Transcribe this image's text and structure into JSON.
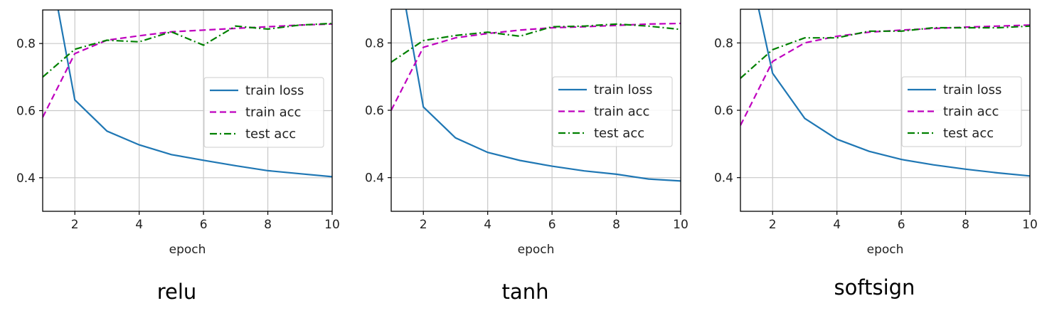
{
  "colors": {
    "train_loss": "#1f77b4",
    "train_acc": "#bf00bf",
    "test_acc": "#008000",
    "grid": "#c8c8c8",
    "axis": "#000000"
  },
  "chart_data": [
    {
      "type": "line",
      "caption": "relu",
      "xlabel": "epoch",
      "ylabel": "",
      "xlim": [
        1,
        10
      ],
      "ylim": [
        0.3,
        0.9
      ],
      "xticks": [
        2,
        4,
        6,
        8,
        10
      ],
      "yticks": [
        0.4,
        0.6,
        0.8
      ],
      "xtick_labels": [
        "2",
        "4",
        "6",
        "8",
        "10"
      ],
      "ytick_labels": [
        "0.4",
        "0.6",
        "0.8"
      ],
      "grid": true,
      "legend_position": "center-right",
      "x": [
        1,
        2,
        3,
        4,
        5,
        6,
        7,
        8,
        9,
        10
      ],
      "series": [
        {
          "name": "train loss",
          "style": "solid",
          "values": [
            1.15,
            0.632,
            0.539,
            0.498,
            0.469,
            0.452,
            0.436,
            0.421,
            0.412,
            0.403
          ]
        },
        {
          "name": "train acc",
          "style": "dashed",
          "values": [
            0.58,
            0.77,
            0.81,
            0.823,
            0.835,
            0.84,
            0.845,
            0.85,
            0.855,
            0.858
          ]
        },
        {
          "name": "test acc",
          "style": "dashdot",
          "values": [
            0.7,
            0.783,
            0.81,
            0.805,
            0.835,
            0.795,
            0.852,
            0.843,
            0.855,
            0.86
          ]
        }
      ]
    },
    {
      "type": "line",
      "caption": "tanh",
      "xlabel": "epoch",
      "ylabel": "",
      "xlim": [
        1,
        10
      ],
      "ylim": [
        0.3,
        0.9
      ],
      "xticks": [
        2,
        4,
        6,
        8,
        10
      ],
      "yticks": [
        0.4,
        0.6,
        0.8
      ],
      "xtick_labels": [
        "2",
        "4",
        "6",
        "8",
        "10"
      ],
      "ytick_labels": [
        "0.4",
        "0.6",
        "0.8"
      ],
      "grid": true,
      "legend_position": "center-right",
      "x": [
        1,
        2,
        3,
        4,
        5,
        6,
        7,
        8,
        9,
        10
      ],
      "series": [
        {
          "name": "train loss",
          "style": "solid",
          "values": [
            1.15,
            0.61,
            0.518,
            0.475,
            0.451,
            0.434,
            0.42,
            0.41,
            0.396,
            0.39
          ]
        },
        {
          "name": "train acc",
          "style": "dashed",
          "values": [
            0.6,
            0.787,
            0.815,
            0.828,
            0.838,
            0.845,
            0.848,
            0.852,
            0.856,
            0.858
          ]
        },
        {
          "name": "test acc",
          "style": "dashdot",
          "values": [
            0.743,
            0.807,
            0.822,
            0.832,
            0.82,
            0.848,
            0.85,
            0.856,
            0.85,
            0.84
          ]
        }
      ]
    },
    {
      "type": "line",
      "caption": "softsign",
      "xlabel": "epoch",
      "ylabel": "",
      "xlim": [
        1,
        10
      ],
      "ylim": [
        0.3,
        0.9
      ],
      "xticks": [
        2,
        4,
        6,
        8,
        10
      ],
      "yticks": [
        0.4,
        0.6,
        0.8
      ],
      "xtick_labels": [
        "2",
        "4",
        "6",
        "8",
        "10"
      ],
      "ytick_labels": [
        "0.4",
        "0.6",
        "0.8"
      ],
      "grid": true,
      "legend_position": "center-right",
      "x": [
        1,
        2,
        3,
        4,
        5,
        6,
        7,
        8,
        9,
        10
      ],
      "series": [
        {
          "name": "train loss",
          "style": "solid",
          "values": [
            1.15,
            0.71,
            0.576,
            0.514,
            0.478,
            0.454,
            0.438,
            0.425,
            0.414,
            0.405
          ]
        },
        {
          "name": "train acc",
          "style": "dashed",
          "values": [
            0.555,
            0.745,
            0.8,
            0.82,
            0.832,
            0.838,
            0.843,
            0.847,
            0.85,
            0.853
          ]
        },
        {
          "name": "test acc",
          "style": "dashdot",
          "values": [
            0.695,
            0.78,
            0.815,
            0.815,
            0.835,
            0.835,
            0.845,
            0.845,
            0.845,
            0.85
          ]
        }
      ]
    }
  ]
}
